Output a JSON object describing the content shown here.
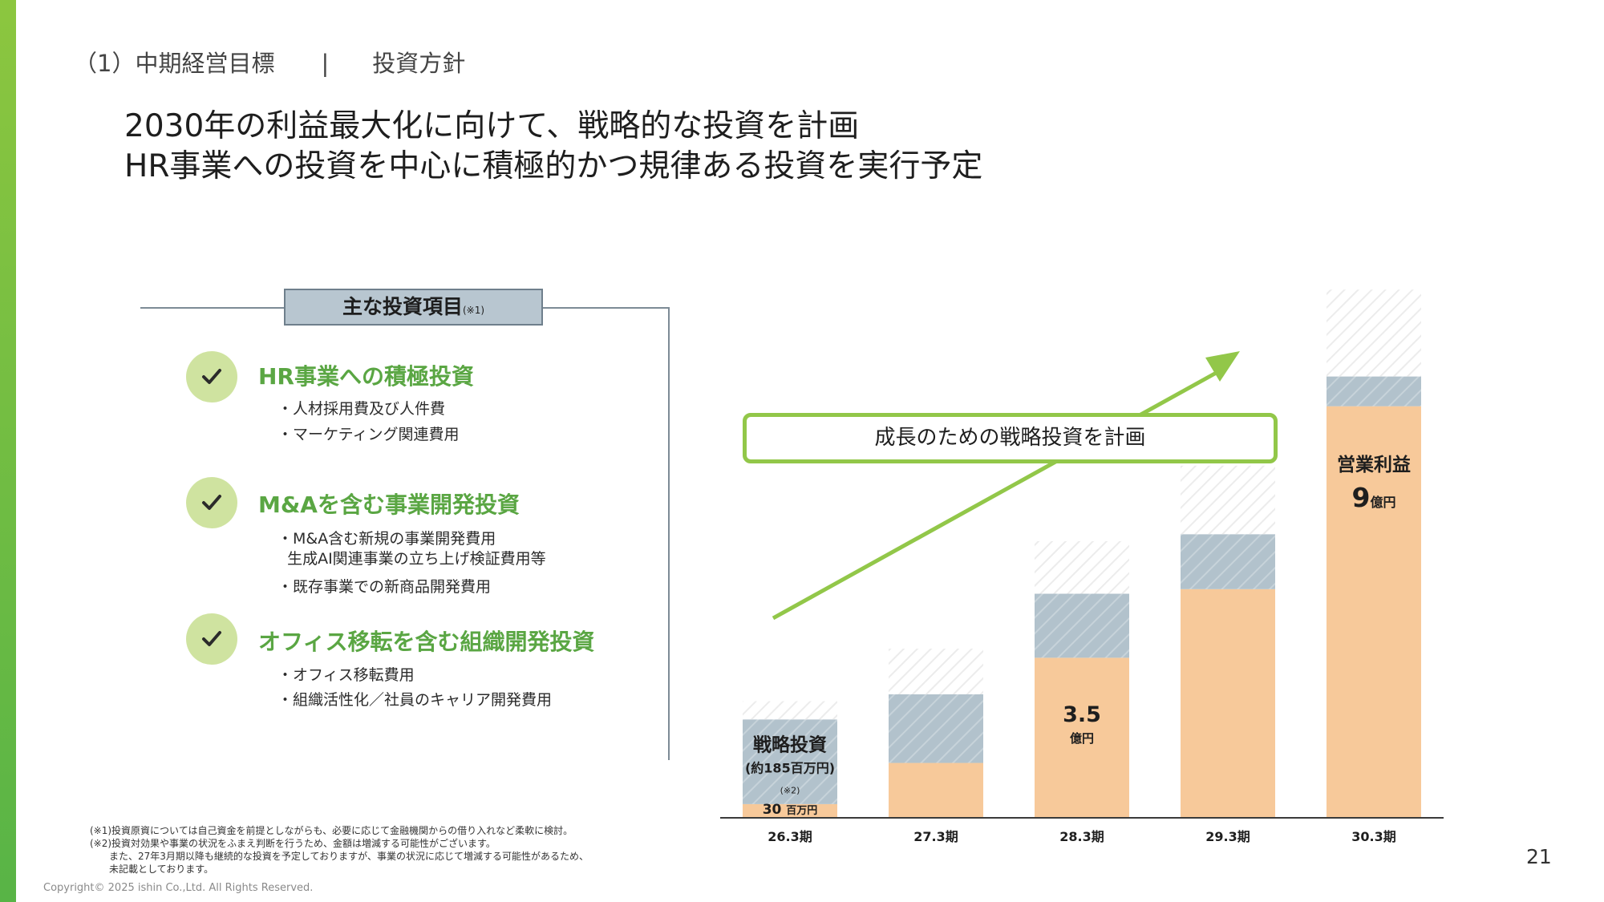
{
  "breadcrumb": {
    "section": "（1）中期経営目標",
    "separator": "|",
    "page": "投資方針"
  },
  "headline": {
    "line1": "2030年の利益最大化に向けて、戦略的な投資を計画",
    "line2": "HR事業への投資を中心に積極的かつ規律ある投資を実行予定"
  },
  "panel": {
    "title": "主な投資項目",
    "title_note": "(※1)",
    "items": [
      {
        "icon": "checkmark-icon",
        "title": "HR事業への積極投資",
        "bullets": [
          "・人材採用費及び人件費",
          "・マーケティング関連費用"
        ]
      },
      {
        "icon": "checkmark-icon",
        "title": "M&Aを含む事業開発投資",
        "bullets": [
          "・M&A含む新規の事業開発費用",
          "  生成AI関連事業の立ち上げ検証費用等",
          "・既存事業での新商品開発費用"
        ]
      },
      {
        "icon": "checkmark-icon",
        "title": "オフィス移転を含む組織開発投資",
        "bullets": [
          "・オフィス移転費用",
          "・組織活性化／社員のキャリア開発費用"
        ]
      }
    ]
  },
  "footnotes": [
    "(※1)投資原資については自己資金を前提としながらも、必要に応じて金融機関からの借り入れなど柔軟に検討。",
    "(※2)投資対効果や事業の状況をふまえ判断を行うため、金額は増減する可能性がございます。",
    "　　また、27年3月期以降も継続的な投資を予定しておりますが、事業の状況に応じて増減する可能性があるため、",
    "　　未記載としております。"
  ],
  "copyright": "Copyright©  2025 ishin Co.,Ltd. All Rights Reserved.",
  "page_number": "21",
  "colors": {
    "accent_green": "#92c749",
    "profit": "#f7c99a",
    "investment": "#b2c2cc",
    "title_green": "#5aa643"
  },
  "chart_data": {
    "type": "bar",
    "categories": [
      "26.3期",
      "27.3期",
      "28.3期",
      "29.3期",
      "30.3期"
    ],
    "series": [
      {
        "name": "営業利益",
        "values": [
          0.3,
          1.2,
          3.5,
          5.0,
          9.0
        ]
      },
      {
        "name": "戦略投資",
        "values": [
          1.85,
          1.5,
          1.4,
          1.2,
          0.65
        ]
      },
      {
        "values": [
          0.4,
          1.0,
          1.15,
          1.5,
          1.9
        ],
        "style": "hatched"
      }
    ],
    "unit": "億円",
    "ylim": [
      0,
      13.5
    ],
    "labels": {
      "bar1_investment_title": "戦略投資",
      "bar1_investment_amount": "(約185百万円)",
      "bar1_investment_note": "(※2)",
      "bar1_profit_value": "30",
      "bar1_profit_unit": "百万円",
      "bar3_profit_value": "3.5",
      "bar3_profit_unit": "億円",
      "bar5_profit_title": "営業利益",
      "bar5_profit_value": "9",
      "bar5_profit_unit": "億円"
    },
    "callout": "成長のための戦略投資を計画"
  }
}
